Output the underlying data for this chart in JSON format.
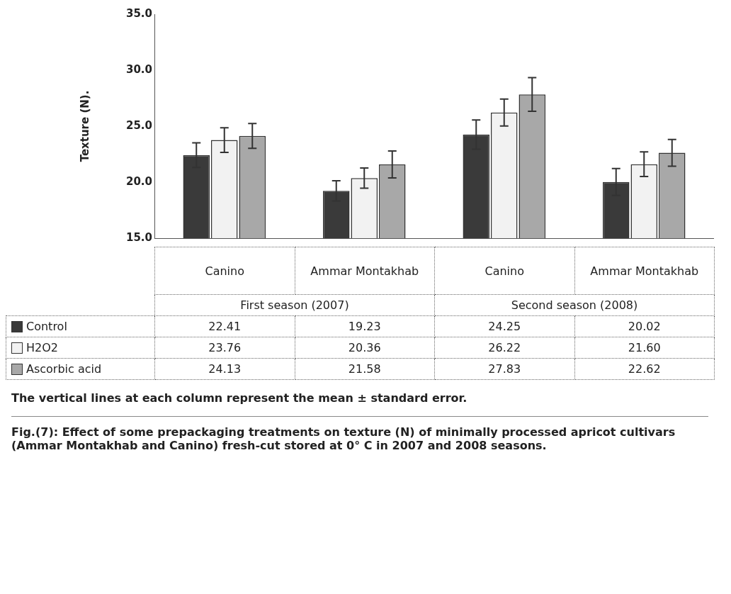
{
  "chart_data": {
    "type": "bar",
    "ylabel": "Texture (N).",
    "categories": [
      "Canino",
      "Ammar Montakhab",
      "Canino",
      "Ammar Montakhab"
    ],
    "series": [
      {
        "name": "Control",
        "color": "#3a3a3a",
        "values": [
          22.41,
          19.23,
          24.25,
          20.02
        ],
        "value_labels": [
          "22.41",
          "19.23",
          "24.25",
          "20.02"
        ],
        "errors": [
          1.1,
          0.9,
          1.3,
          1.2
        ]
      },
      {
        "name": "H2O2",
        "color": "#f2f2f2",
        "values": [
          23.76,
          20.36,
          26.22,
          21.6
        ],
        "value_labels": [
          "23.76",
          "20.36",
          "26.22",
          "21.60"
        ],
        "errors": [
          1.1,
          0.9,
          1.2,
          1.1
        ]
      },
      {
        "name": "Ascorbic acid",
        "color": "#a8a8a8",
        "values": [
          24.13,
          21.58,
          27.83,
          22.62
        ],
        "value_labels": [
          "24.13",
          "21.58",
          "27.83",
          "22.62"
        ],
        "errors": [
          1.1,
          1.2,
          1.5,
          1.2
        ]
      }
    ],
    "ylim": [
      15,
      35
    ],
    "yticks": [
      {
        "value": 15,
        "label": "15.0"
      },
      {
        "value": 20,
        "label": "20.0"
      },
      {
        "value": 25,
        "label": "25.0"
      },
      {
        "value": 30,
        "label": "30.0"
      },
      {
        "value": 35,
        "label": "35.0"
      }
    ],
    "grid": false,
    "legend": "bottom",
    "annotations": [
      "First season (2007)",
      "Second season (2008)",
      "The vertical lines at each column  represent the mean ± standard error.",
      "Fig.(7): Effect of some prepackaging treatments on texture (N) of minimally processed apricot cultivars (Ammar Montakhab and Canino) fresh-cut stored at  0° C in 2007 and 2008 seasons."
    ]
  }
}
